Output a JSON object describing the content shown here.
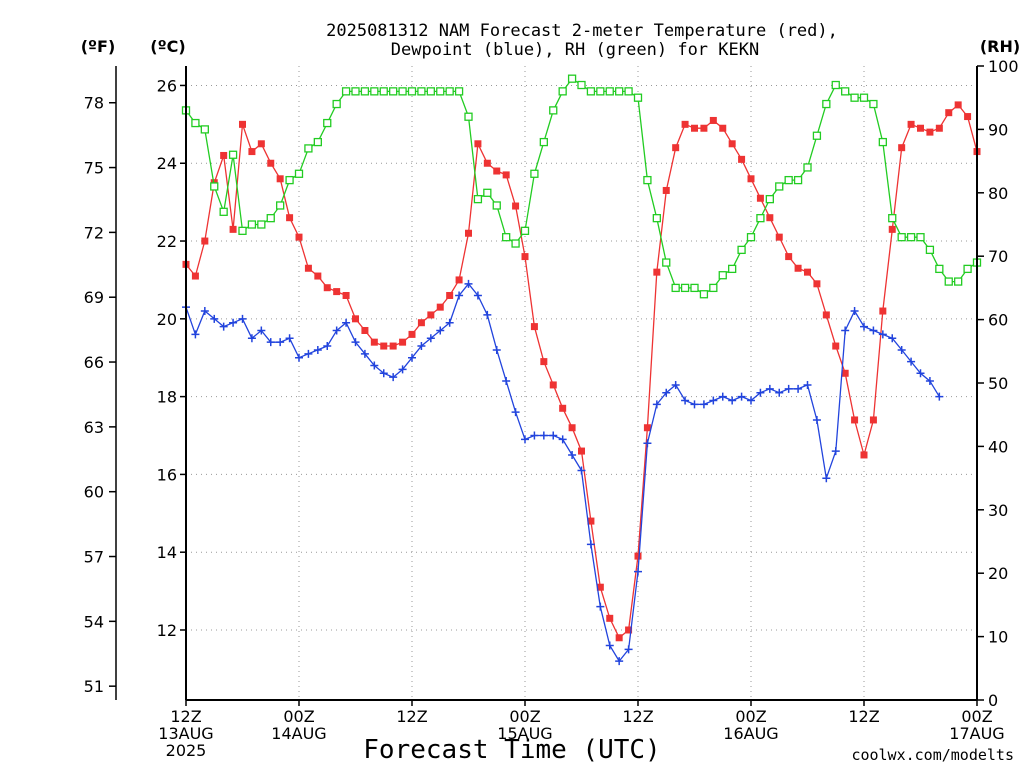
{
  "chart_data": {
    "type": "line",
    "title_line1": "2025081312 NAM Forecast 2-meter Temperature (red),",
    "title_line2": "Dewpoint (blue), RH (green) for KEKN",
    "xlabel": "Forecast Time (UTC)",
    "credit": "coolwx.com/modelts",
    "units": {
      "left_f": "(ºF)",
      "left_c": "(ºC)",
      "right": "(RH)"
    },
    "xlim_hours": [
      0,
      84
    ],
    "ylim_c": [
      10.2,
      26.5
    ],
    "ylim_rh": [
      0,
      100
    ],
    "x_ticks": [
      {
        "hour": 0,
        "line1": "12Z",
        "line2": "13AUG",
        "line3": "2025"
      },
      {
        "hour": 12,
        "line1": "00Z",
        "line2": "14AUG",
        "line3": ""
      },
      {
        "hour": 24,
        "line1": "12Z",
        "line2": "",
        "line3": ""
      },
      {
        "hour": 36,
        "line1": "00Z",
        "line2": "15AUG",
        "line3": ""
      },
      {
        "hour": 48,
        "line1": "12Z",
        "line2": "",
        "line3": ""
      },
      {
        "hour": 60,
        "line1": "00Z",
        "line2": "16AUG",
        "line3": ""
      },
      {
        "hour": 72,
        "line1": "12Z",
        "line2": "",
        "line3": ""
      },
      {
        "hour": 84,
        "line1": "00Z",
        "line2": "17AUG",
        "line3": ""
      }
    ],
    "y_ticks_c": [
      12,
      14,
      16,
      18,
      20,
      22,
      24,
      26
    ],
    "y_ticks_f": [
      51,
      54,
      57,
      60,
      63,
      66,
      69,
      72,
      75,
      78
    ],
    "y_ticks_rh": [
      0,
      10,
      20,
      30,
      40,
      50,
      60,
      70,
      80,
      90,
      100
    ],
    "colors": {
      "temperature": "#ee3333",
      "dewpoint": "#2244dd",
      "rh": "#22cc22",
      "grid": "#999999"
    },
    "series": [
      {
        "name": "Temperature (red)",
        "unit": "C",
        "marker": "filled-square",
        "points": [
          [
            0,
            21.4
          ],
          [
            1,
            21.1
          ],
          [
            2,
            22.0
          ],
          [
            3,
            23.5
          ],
          [
            4,
            24.2
          ],
          [
            5,
            22.3
          ],
          [
            6,
            25.0
          ],
          [
            7,
            24.3
          ],
          [
            8,
            24.5
          ],
          [
            9,
            24.0
          ],
          [
            10,
            23.6
          ],
          [
            11,
            22.6
          ],
          [
            12,
            22.1
          ],
          [
            13,
            21.3
          ],
          [
            14,
            21.1
          ],
          [
            15,
            20.8
          ],
          [
            16,
            20.7
          ],
          [
            17,
            20.6
          ],
          [
            18,
            20.0
          ],
          [
            19,
            19.7
          ],
          [
            20,
            19.4
          ],
          [
            21,
            19.3
          ],
          [
            22,
            19.3
          ],
          [
            23,
            19.4
          ],
          [
            24,
            19.6
          ],
          [
            25,
            19.9
          ],
          [
            26,
            20.1
          ],
          [
            27,
            20.3
          ],
          [
            28,
            20.6
          ],
          [
            29,
            21.0
          ],
          [
            30,
            22.2
          ],
          [
            31,
            24.5
          ],
          [
            32,
            24.0
          ],
          [
            33,
            23.8
          ],
          [
            34,
            23.7
          ],
          [
            35,
            22.9
          ],
          [
            36,
            21.6
          ],
          [
            37,
            19.8
          ],
          [
            38,
            18.9
          ],
          [
            39,
            18.3
          ],
          [
            40,
            17.7
          ],
          [
            41,
            17.2
          ],
          [
            42,
            16.6
          ],
          [
            43,
            14.8
          ],
          [
            44,
            13.1
          ],
          [
            45,
            12.3
          ],
          [
            46,
            11.8
          ],
          [
            47,
            12.0
          ],
          [
            48,
            13.9
          ],
          [
            49,
            17.2
          ],
          [
            50,
            21.2
          ],
          [
            51,
            23.3
          ],
          [
            52,
            24.4
          ],
          [
            53,
            25.0
          ],
          [
            54,
            24.9
          ],
          [
            55,
            24.9
          ],
          [
            56,
            25.1
          ],
          [
            57,
            24.9
          ],
          [
            58,
            24.5
          ],
          [
            59,
            24.1
          ],
          [
            60,
            23.6
          ],
          [
            61,
            23.1
          ],
          [
            62,
            22.6
          ],
          [
            63,
            22.1
          ],
          [
            64,
            21.6
          ],
          [
            65,
            21.3
          ],
          [
            66,
            21.2
          ],
          [
            67,
            20.9
          ],
          [
            68,
            20.1
          ],
          [
            69,
            19.3
          ],
          [
            70,
            18.6
          ],
          [
            71,
            17.4
          ],
          [
            72,
            16.5
          ],
          [
            73,
            17.4
          ],
          [
            74,
            20.2
          ],
          [
            75,
            22.3
          ],
          [
            76,
            24.4
          ],
          [
            77,
            25.0
          ],
          [
            78,
            24.9
          ],
          [
            79,
            24.8
          ],
          [
            80,
            24.9
          ],
          [
            81,
            25.3
          ],
          [
            82,
            25.5
          ],
          [
            83,
            25.2
          ],
          [
            84,
            24.3
          ]
        ]
      },
      {
        "name": "Dewpoint (blue)",
        "unit": "C",
        "marker": "plus",
        "points": [
          [
            0,
            20.3
          ],
          [
            1,
            19.6
          ],
          [
            2,
            20.2
          ],
          [
            3,
            20.0
          ],
          [
            4,
            19.8
          ],
          [
            5,
            19.9
          ],
          [
            6,
            20.0
          ],
          [
            7,
            19.5
          ],
          [
            8,
            19.7
          ],
          [
            9,
            19.4
          ],
          [
            10,
            19.4
          ],
          [
            11,
            19.5
          ],
          [
            12,
            19.0
          ],
          [
            13,
            19.1
          ],
          [
            14,
            19.2
          ],
          [
            15,
            19.3
          ],
          [
            16,
            19.7
          ],
          [
            17,
            19.9
          ],
          [
            18,
            19.4
          ],
          [
            19,
            19.1
          ],
          [
            20,
            18.8
          ],
          [
            21,
            18.6
          ],
          [
            22,
            18.5
          ],
          [
            23,
            18.7
          ],
          [
            24,
            19.0
          ],
          [
            25,
            19.3
          ],
          [
            26,
            19.5
          ],
          [
            27,
            19.7
          ],
          [
            28,
            19.9
          ],
          [
            29,
            20.6
          ],
          [
            30,
            20.9
          ],
          [
            31,
            20.6
          ],
          [
            32,
            20.1
          ],
          [
            33,
            19.2
          ],
          [
            34,
            18.4
          ],
          [
            35,
            17.6
          ],
          [
            36,
            16.9
          ],
          [
            37,
            17.0
          ],
          [
            38,
            17.0
          ],
          [
            39,
            17.0
          ],
          [
            40,
            16.9
          ],
          [
            41,
            16.5
          ],
          [
            42,
            16.1
          ],
          [
            43,
            14.2
          ],
          [
            44,
            12.6
          ],
          [
            45,
            11.6
          ],
          [
            46,
            11.2
          ],
          [
            47,
            11.5
          ],
          [
            48,
            13.5
          ],
          [
            49,
            16.8
          ],
          [
            50,
            17.8
          ],
          [
            51,
            18.1
          ],
          [
            52,
            18.3
          ],
          [
            53,
            17.9
          ],
          [
            54,
            17.8
          ],
          [
            55,
            17.8
          ],
          [
            56,
            17.9
          ],
          [
            57,
            18.0
          ],
          [
            58,
            17.9
          ],
          [
            59,
            18.0
          ],
          [
            60,
            17.9
          ],
          [
            61,
            18.1
          ],
          [
            62,
            18.2
          ],
          [
            63,
            18.1
          ],
          [
            64,
            18.2
          ],
          [
            65,
            18.2
          ],
          [
            66,
            18.3
          ],
          [
            67,
            17.4
          ],
          [
            68,
            15.9
          ],
          [
            69,
            16.6
          ],
          [
            70,
            19.7
          ],
          [
            71,
            20.2
          ],
          [
            72,
            19.8
          ],
          [
            73,
            19.7
          ],
          [
            74,
            19.6
          ],
          [
            75,
            19.5
          ],
          [
            76,
            19.2
          ],
          [
            77,
            18.9
          ],
          [
            78,
            18.6
          ],
          [
            79,
            18.4
          ],
          [
            80,
            18.0
          ]
        ]
      },
      {
        "name": "RH (green)",
        "unit": "RH",
        "marker": "open-square",
        "points": [
          [
            0,
            93
          ],
          [
            1,
            91
          ],
          [
            2,
            90
          ],
          [
            3,
            81
          ],
          [
            4,
            77
          ],
          [
            5,
            86
          ],
          [
            6,
            74
          ],
          [
            7,
            75
          ],
          [
            8,
            75
          ],
          [
            9,
            76
          ],
          [
            10,
            78
          ],
          [
            11,
            82
          ],
          [
            12,
            83
          ],
          [
            13,
            87
          ],
          [
            14,
            88
          ],
          [
            15,
            91
          ],
          [
            16,
            94
          ],
          [
            17,
            96
          ],
          [
            18,
            96
          ],
          [
            19,
            96
          ],
          [
            20,
            96
          ],
          [
            21,
            96
          ],
          [
            22,
            96
          ],
          [
            23,
            96
          ],
          [
            24,
            96
          ],
          [
            25,
            96
          ],
          [
            26,
            96
          ],
          [
            27,
            96
          ],
          [
            28,
            96
          ],
          [
            29,
            96
          ],
          [
            30,
            92
          ],
          [
            31,
            79
          ],
          [
            32,
            80
          ],
          [
            33,
            78
          ],
          [
            34,
            73
          ],
          [
            35,
            72
          ],
          [
            36,
            74
          ],
          [
            37,
            83
          ],
          [
            38,
            88
          ],
          [
            39,
            93
          ],
          [
            40,
            96
          ],
          [
            41,
            98
          ],
          [
            42,
            97
          ],
          [
            43,
            96
          ],
          [
            44,
            96
          ],
          [
            45,
            96
          ],
          [
            46,
            96
          ],
          [
            47,
            96
          ],
          [
            48,
            95
          ],
          [
            49,
            82
          ],
          [
            50,
            76
          ],
          [
            51,
            69
          ],
          [
            52,
            65
          ],
          [
            53,
            65
          ],
          [
            54,
            65
          ],
          [
            55,
            64
          ],
          [
            56,
            65
          ],
          [
            57,
            67
          ],
          [
            58,
            68
          ],
          [
            59,
            71
          ],
          [
            60,
            73
          ],
          [
            61,
            76
          ],
          [
            62,
            79
          ],
          [
            63,
            81
          ],
          [
            64,
            82
          ],
          [
            65,
            82
          ],
          [
            66,
            84
          ],
          [
            67,
            89
          ],
          [
            68,
            94
          ],
          [
            69,
            97
          ],
          [
            70,
            96
          ],
          [
            71,
            95
          ],
          [
            72,
            95
          ],
          [
            73,
            94
          ],
          [
            74,
            88
          ],
          [
            75,
            76
          ],
          [
            76,
            73
          ],
          [
            77,
            73
          ],
          [
            78,
            73
          ],
          [
            79,
            71
          ],
          [
            80,
            68
          ],
          [
            81,
            66
          ],
          [
            82,
            66
          ],
          [
            83,
            68
          ],
          [
            84,
            69
          ]
        ]
      }
    ]
  }
}
